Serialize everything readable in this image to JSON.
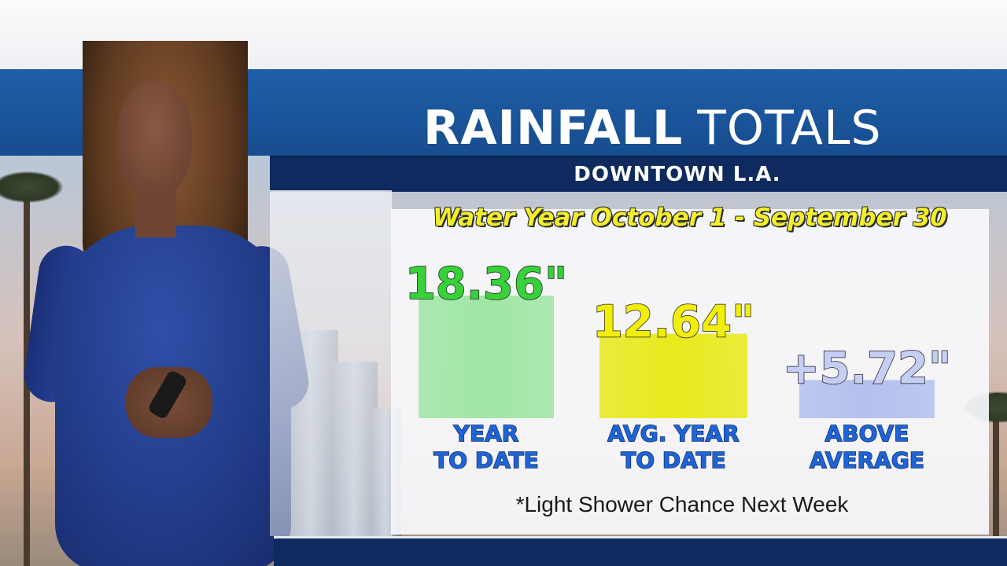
{
  "title": {
    "bold": "RAINFALL",
    "light": "TOTALS"
  },
  "subtitle": "DOWNTOWN L.A.",
  "period": "Water Year October 1 - September 30",
  "footnote": "*Light Shower Chance Next Week",
  "colors": {
    "band_blue": "#1f5fa8",
    "bar_navy": "#0e2a5e",
    "period_yellow": "#f2ee2a",
    "ytd_green": "#4fd84a",
    "avg_yellow": "#f4f10e",
    "above_lavender": "#b9c3ef"
  },
  "chart_data": {
    "type": "bar",
    "title": "RAINFALL TOTALS",
    "subtitle": "DOWNTOWN L.A.",
    "categories": [
      "YEAR TO DATE",
      "AVG. YEAR TO DATE",
      "ABOVE AVERAGE"
    ],
    "values": [
      18.36,
      12.64,
      5.72
    ],
    "value_labels": [
      "18.36\"",
      "12.64\"",
      "+5.72\""
    ],
    "label_lines": [
      [
        "YEAR",
        "TO DATE"
      ],
      [
        "AVG. YEAR",
        "TO DATE"
      ],
      [
        "ABOVE",
        "AVERAGE"
      ]
    ],
    "bar_colors": [
      "#9fe6a4",
      "#e8ea1c",
      "#b4c0ee"
    ],
    "value_colors": [
      "#38d13a",
      "#f2ee0c",
      "#c5cff5"
    ],
    "unit": "inches",
    "grid": false,
    "legend": "none"
  }
}
